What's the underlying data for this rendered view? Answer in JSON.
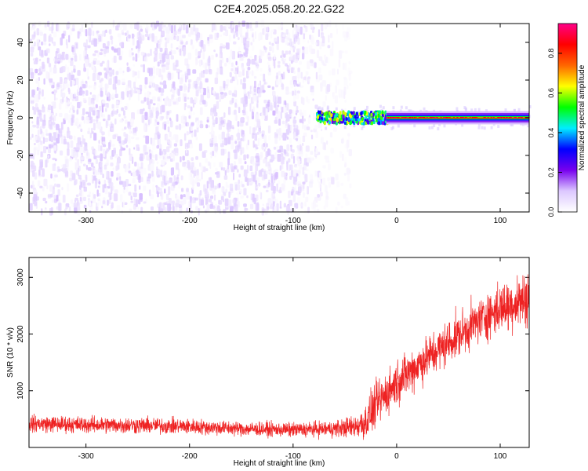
{
  "figure_title": "C2E4.2025.058.20.22.G22",
  "colors": {
    "snr_line": "#ee2222",
    "spectrogram_noise": "#7a1fe8",
    "colorbar": [
      "#ffffff",
      "#dcc8ff",
      "#7700ee",
      "#0000ff",
      "#00eeff",
      "#00ff00",
      "#ffff00",
      "#ff6600",
      "#ff0000",
      "#ff0088"
    ]
  },
  "chart_data": [
    {
      "type": "heatmap",
      "title": "",
      "xlabel": "Height of straight line (km)",
      "ylabel": "Frequency (Hz)",
      "xlim": [
        -355,
        128
      ],
      "ylim": [
        -50,
        50
      ],
      "xticks": [
        -300,
        -200,
        -100,
        0,
        100
      ],
      "yticks": [
        -40,
        -20,
        0,
        20,
        40
      ],
      "colorbar": {
        "label": "Normalized spectral amplitude",
        "range": [
          0,
          0.95
        ],
        "ticks": [
          0.0,
          0.2,
          0.4,
          0.6,
          0.8
        ]
      },
      "regions": [
        {
          "x_range": [
            -355,
            -100
          ],
          "freq_range": [
            -50,
            50
          ],
          "amplitude_range": [
            0.02,
            0.12
          ]
        },
        {
          "x_range": [
            -100,
            -45
          ],
          "freq_range": [
            -50,
            50
          ],
          "amplitude_range": [
            0.0,
            0.08
          ]
        },
        {
          "x_range": [
            -78,
            -10
          ],
          "freq_range": [
            -3,
            3
          ],
          "amplitude_range": [
            0.2,
            0.7
          ]
        },
        {
          "x_range": [
            -10,
            128
          ],
          "freq_range": [
            -2,
            2
          ],
          "amplitude_range": [
            0.3,
            0.9
          ],
          "peak_freq": 0
        }
      ]
    },
    {
      "type": "line",
      "title": "",
      "xlabel": "Height of straight line (km)",
      "ylabel": "SNR (10 * v/v)",
      "xlim": [
        -355,
        128
      ],
      "ylim": [
        0,
        3350
      ],
      "xticks": [
        -300,
        -200,
        -100,
        0,
        100
      ],
      "yticks": [
        1000,
        2000,
        3000
      ],
      "series": [
        {
          "x": [
            -355,
            -300,
            -250,
            -200,
            -150,
            -100,
            -60,
            -40,
            -30,
            -20,
            0,
            20,
            50,
            80,
            100,
            128
          ],
          "y_mean": [
            420,
            400,
            390,
            370,
            330,
            310,
            330,
            370,
            450,
            750,
            1150,
            1450,
            1850,
            2250,
            2450,
            2650
          ],
          "y_spread": [
            150,
            150,
            150,
            140,
            130,
            130,
            150,
            200,
            350,
            400,
            400,
            400,
            400,
            400,
            450,
            500
          ]
        }
      ]
    }
  ]
}
